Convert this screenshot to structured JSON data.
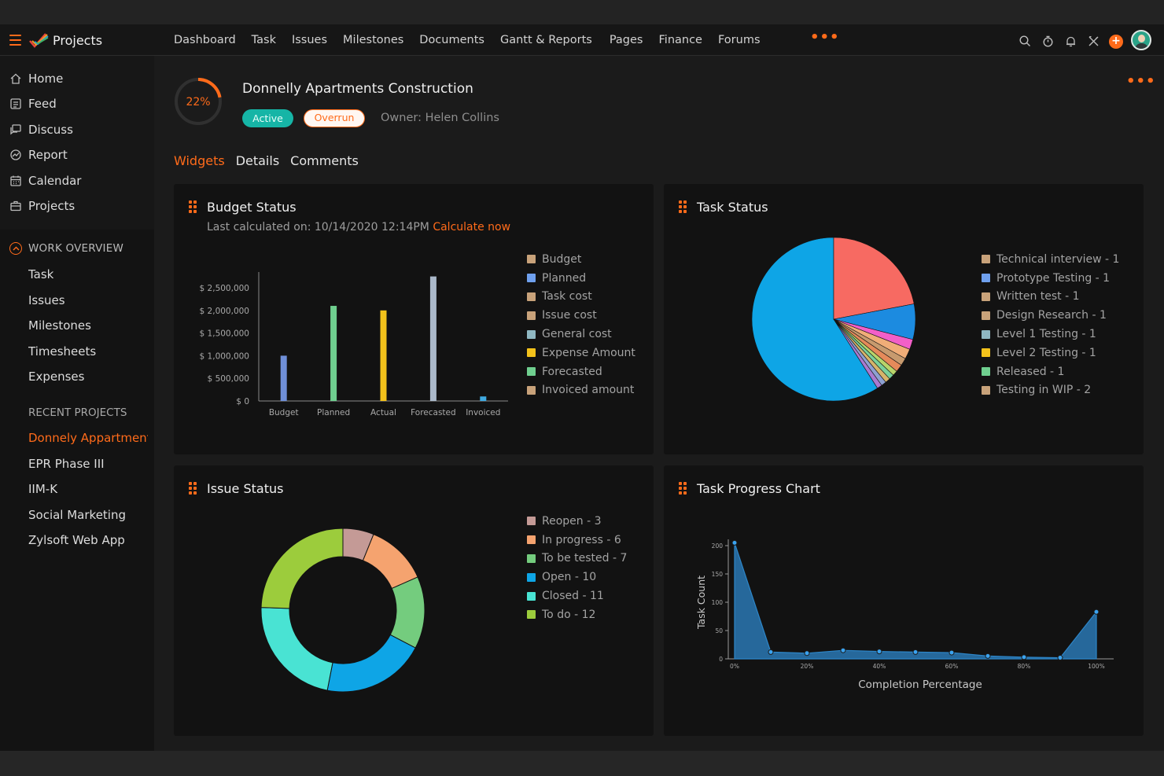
{
  "app": {
    "name": "Projects"
  },
  "nav": {
    "items": [
      "Dashboard",
      "Task",
      "Issues",
      "Milestones",
      "Documents",
      "Gantt & Reports",
      "Pages",
      "Finance",
      "Forums"
    ]
  },
  "sidebar": {
    "main": [
      "Home",
      "Feed",
      "Discuss",
      "Report",
      "Calendar",
      "Projects"
    ],
    "work_overview_label": "WORK OVERVIEW",
    "work_overview": [
      "Task",
      "Issues",
      "Milestones",
      "Timesheets",
      "Expenses"
    ],
    "recent_label": "RECENT PROJECTS",
    "recent": [
      "Donnely Appartment",
      "EPR Phase III",
      "IIM-K",
      "Social Marketing",
      "Zylsoft Web App"
    ]
  },
  "project": {
    "title": "Donnelly Apartments Construction",
    "progress": 22,
    "progress_label": "22%",
    "status": "Active",
    "flag": "Overrun",
    "owner_label": "Owner: Helen Collins"
  },
  "tabs": [
    "Widgets",
    "Details",
    "Comments"
  ],
  "widgets": {
    "budget": {
      "title": "Budget Status",
      "calculated": "Last calculated on: 10/14/2020 12:14PM",
      "calculate_link": "Calculate now"
    },
    "task_status": {
      "title": "Task Status"
    },
    "issue_status": {
      "title": "Issue Status"
    },
    "task_progress": {
      "title": "Task Progress Chart"
    }
  },
  "colors": {
    "accent": "#ff6b1a",
    "active": "#16b5a6"
  },
  "chart_data": [
    {
      "type": "bar",
      "title": "Budget Status",
      "categories": [
        "Budget",
        "Planned",
        "Actual",
        "Forecasted",
        "Invoiced"
      ],
      "values": [
        1000000,
        2100000,
        2000000,
        2750000,
        100000
      ],
      "bar_colors": [
        "#6f8fd8",
        "#6fcf8f",
        "#f3c21b",
        "#aab8c9",
        "#3fa9e0"
      ],
      "ylim": [
        0,
        2500000
      ],
      "yticks": [
        "$ 2,500,000",
        "$ 2,000,000",
        "$ 1,500,000",
        "$ 1,000,000",
        "$ 500,000",
        "$ 0"
      ],
      "legend": [
        {
          "label": "Budget",
          "color": "#c8a27a"
        },
        {
          "label": "Planned",
          "color": "#6fa0ee"
        },
        {
          "label": "Task cost",
          "color": "#c8a27a"
        },
        {
          "label": "Issue cost",
          "color": "#c8a27a"
        },
        {
          "label": "General cost",
          "color": "#8fb7c2"
        },
        {
          "label": "Expense Amount",
          "color": "#f3c21b"
        },
        {
          "label": "Forecasted",
          "color": "#6fcf8f"
        },
        {
          "label": "Invoiced amount",
          "color": "#c8a27a"
        }
      ]
    },
    {
      "type": "pie",
      "title": "Task Status",
      "slices": [
        {
          "value": 59,
          "color": "#0ea5e6"
        },
        {
          "value": 22,
          "color": "#f76a62"
        },
        {
          "value": 7,
          "color": "#1c8be0"
        },
        {
          "value": 2,
          "color": "#f25fc8"
        },
        {
          "value": 2,
          "color": "#f0ad78"
        },
        {
          "value": 1.5,
          "color": "#c79a6e"
        },
        {
          "value": 1.5,
          "color": "#e58a5a"
        },
        {
          "value": 1,
          "color": "#b8d46a"
        },
        {
          "value": 1,
          "color": "#7ad19a"
        },
        {
          "value": 1,
          "color": "#d6b46a"
        },
        {
          "value": 1,
          "color": "#8ea0d0"
        },
        {
          "value": 1,
          "color": "#a97ad0"
        }
      ],
      "legend": [
        {
          "label": "Technical interview - 1",
          "color": "#c8a27a"
        },
        {
          "label": "Prototype Testing - 1",
          "color": "#6fa0ee"
        },
        {
          "label": "Written test - 1",
          "color": "#c8a27a"
        },
        {
          "label": "Design Research - 1",
          "color": "#c8a27a"
        },
        {
          "label": "Level 1 Testing - 1",
          "color": "#8fb7c2"
        },
        {
          "label": "Level 2 Testing - 1",
          "color": "#f3c21b"
        },
        {
          "label": "Released - 1",
          "color": "#6fcf8f"
        },
        {
          "label": "Testing in WIP - 2",
          "color": "#c8a27a"
        }
      ]
    },
    {
      "type": "pie",
      "title": "Issue Status",
      "donut": true,
      "slices": [
        {
          "label": "Reopen",
          "value": 3,
          "color": "#c49a96"
        },
        {
          "label": "In progress",
          "value": 6,
          "color": "#f5a36f"
        },
        {
          "label": "To be tested",
          "value": 7,
          "color": "#74cc7e"
        },
        {
          "label": "Open",
          "value": 10,
          "color": "#0ea5e6"
        },
        {
          "label": "Closed",
          "value": 11,
          "color": "#49e3d3"
        },
        {
          "label": "To do",
          "value": 12,
          "color": "#9ccc3c"
        }
      ],
      "legend": [
        {
          "label": "Reopen - 3",
          "color": "#c49a96"
        },
        {
          "label": "In progress - 6",
          "color": "#f5a36f"
        },
        {
          "label": "To be tested - 7",
          "color": "#74cc7e"
        },
        {
          "label": "Open - 10",
          "color": "#0ea5e6"
        },
        {
          "label": "Closed - 11",
          "color": "#49e3d3"
        },
        {
          "label": "To do - 12",
          "color": "#9ccc3c"
        }
      ]
    },
    {
      "type": "area",
      "title": "Task Progress Chart",
      "xlabel": "Completion Percentage",
      "ylabel": "Task Count",
      "x": [
        0,
        10,
        20,
        30,
        40,
        50,
        60,
        70,
        80,
        90,
        100
      ],
      "values": [
        205,
        12,
        10,
        15,
        13,
        12,
        11,
        5,
        3,
        2,
        83
      ],
      "ylim": [
        0,
        200
      ],
      "yticks": [
        "200",
        "150",
        "100",
        "50",
        "0"
      ],
      "xticks": [
        "0%",
        "20%",
        "40%",
        "60%",
        "80%",
        "100%"
      ],
      "color": "#2d86c9"
    }
  ]
}
